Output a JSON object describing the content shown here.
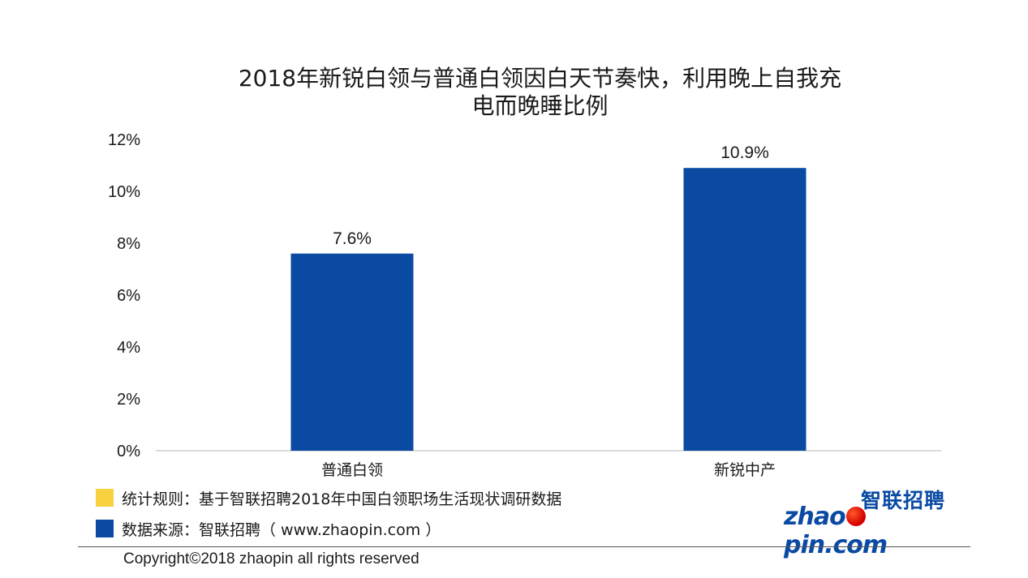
{
  "chart_data": {
    "type": "bar",
    "title_line1": "2018年新锐白领与普通白领因白天节奏快，利用晚上自我充",
    "title_line2": "电而晚睡比例",
    "categories": [
      "普通白领",
      "新锐中产"
    ],
    "values": [
      7.6,
      10.9
    ],
    "value_labels": [
      "7.6%",
      "10.9%"
    ],
    "ylim": [
      0,
      12
    ],
    "yticks": [
      0,
      2,
      4,
      6,
      8,
      10,
      12
    ],
    "ytick_labels": [
      "0%",
      "2%",
      "4%",
      "6%",
      "8%",
      "10%",
      "12%"
    ],
    "grid": false,
    "bar_color": "#0a4aa3"
  },
  "notes": {
    "rule": "统计规则：基于智联招聘2018年中国白领职场生活现状调研数据",
    "rule_color": "#f7d23e",
    "source": "数据来源：智联招聘（ www.zhaopin.com ）",
    "source_color": "#0a4aa3"
  },
  "footer": {
    "copyright": "Copyright©2018 zhaopin all rights reserved"
  },
  "logo": {
    "cn": "智联招聘",
    "en_left": "zhao",
    "en_right": "pin.com"
  }
}
